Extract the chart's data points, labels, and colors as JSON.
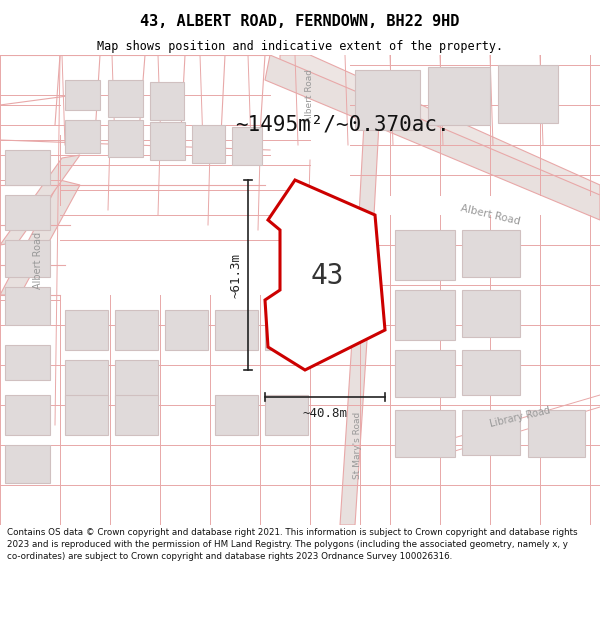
{
  "title_line1": "43, ALBERT ROAD, FERNDOWN, BH22 9HD",
  "title_line2": "Map shows position and indicative extent of the property.",
  "area_text": "~1495m²/~0.370ac.",
  "property_number": "43",
  "dim_vertical": "~61.3m",
  "dim_horizontal": "~40.8m",
  "footer_text": "Contains OS data © Crown copyright and database right 2021. This information is subject to Crown copyright and database rights 2023 and is reproduced with the permission of HM Land Registry. The polygons (including the associated geometry, namely x, y co-ordinates) are subject to Crown copyright and database rights 2023 Ordnance Survey 100026316.",
  "map_bg": "#f9f7f7",
  "road_line_color": "#e8a8a8",
  "road_fill_color": "#f0e8e8",
  "albert_road_fill": "#e8e0df",
  "building_fill": "#e0dada",
  "building_edge": "#d0c0c0",
  "property_fill": "#ffffff",
  "property_edge": "#cc0000",
  "title_bg": "#ffffff",
  "footer_bg": "#ffffff",
  "dim_color": "#222222",
  "area_color": "#111111",
  "label_color": "#999999"
}
